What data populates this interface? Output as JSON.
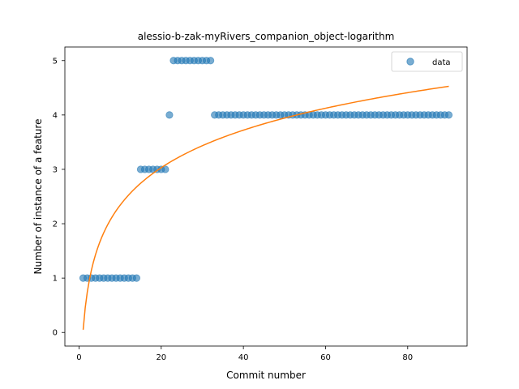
{
  "chart_data": {
    "type": "scatter",
    "title": "alessio-b-zak-myRivers_companion_object-logarithm",
    "xlabel": "Commit number",
    "ylabel": "Number of instance of a feature",
    "xlim": [
      -3.45,
      94.45
    ],
    "ylim": [
      -0.25,
      5.25
    ],
    "xticks": [
      0,
      20,
      40,
      60,
      80
    ],
    "yticks": [
      0,
      1,
      2,
      3,
      4,
      5
    ],
    "grid": false,
    "legend_position": "upper right",
    "colors": {
      "data": "#1f77b4",
      "fit": "#ff7f0e"
    },
    "series": [
      {
        "name": "data",
        "kind": "scatter",
        "x": [
          1,
          2,
          3,
          4,
          5,
          6,
          7,
          8,
          9,
          10,
          11,
          12,
          13,
          14,
          15,
          16,
          17,
          18,
          19,
          20,
          21,
          22,
          23,
          24,
          25,
          26,
          27,
          28,
          29,
          30,
          31,
          32,
          33,
          34,
          35,
          36,
          37,
          38,
          39,
          40,
          41,
          42,
          43,
          44,
          45,
          46,
          47,
          48,
          49,
          50,
          51,
          52,
          53,
          54,
          55,
          56,
          57,
          58,
          59,
          60,
          61,
          62,
          63,
          64,
          65,
          66,
          67,
          68,
          69,
          70,
          71,
          72,
          73,
          74,
          75,
          76,
          77,
          78,
          79,
          80,
          81,
          82,
          83,
          84,
          85,
          86,
          87,
          88,
          89,
          90
        ],
        "y": [
          1,
          1,
          1,
          1,
          1,
          1,
          1,
          1,
          1,
          1,
          1,
          1,
          1,
          1,
          3,
          3,
          3,
          3,
          3,
          3,
          3,
          4,
          5,
          5,
          5,
          5,
          5,
          5,
          5,
          5,
          5,
          5,
          4,
          4,
          4,
          4,
          4,
          4,
          4,
          4,
          4,
          4,
          4,
          4,
          4,
          4,
          4,
          4,
          4,
          4,
          4,
          4,
          4,
          4,
          4,
          4,
          4,
          4,
          4,
          4,
          4,
          4,
          4,
          4,
          4,
          4,
          4,
          4,
          4,
          4,
          4,
          4,
          4,
          4,
          4,
          4,
          4,
          4,
          4,
          4,
          4,
          4,
          4,
          4,
          4,
          4,
          4,
          4,
          4,
          4
        ]
      },
      {
        "name": "",
        "kind": "line",
        "model": "logarithmic",
        "a": 0.05,
        "b": 0.995,
        "x_range": [
          1,
          90
        ]
      }
    ]
  }
}
